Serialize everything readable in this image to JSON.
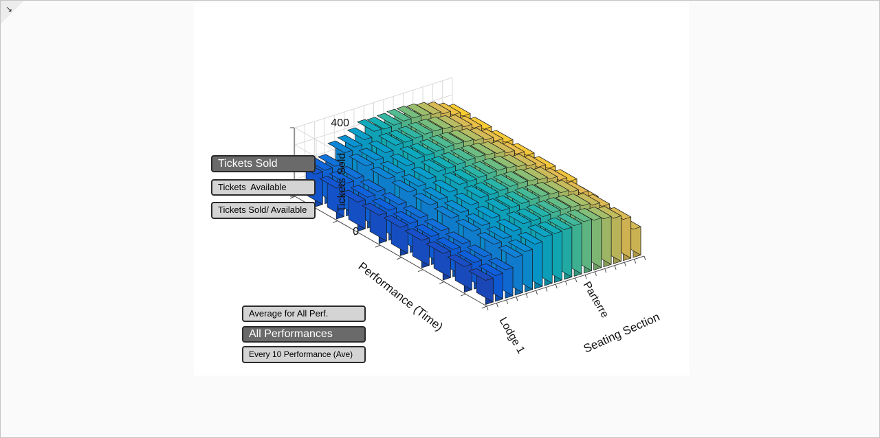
{
  "window": {
    "corner_icon": "resize-arrow-icon"
  },
  "buttons": {
    "tickets_sold": "Tickets Sold",
    "tickets_available": "Tickets  Available",
    "tickets_sold_available": "Tickets Sold/ Available",
    "average_all_perf": "Average for All Perf.",
    "all_performances": "All Performances",
    "every_10_performance": "Every 10 Performance (Ave)"
  },
  "chart_data": {
    "type": "bar3d",
    "zlabel": "Tickets Sold",
    "xlabel": "Performance (Time)",
    "ylabel": "Seating Section",
    "zlim": [
      0,
      400
    ],
    "zticks": [
      "0",
      "400"
    ],
    "section_ticks": [
      {
        "label": "Lodge 1",
        "index": 0
      },
      {
        "label": "Parterre",
        "index": 9
      }
    ],
    "colormap": "parula",
    "grid": true,
    "rows": [
      [
        190,
        195,
        200,
        260,
        275,
        300,
        330,
        325,
        330,
        335,
        335,
        330,
        320,
        305,
        280,
        255
      ],
      [
        180,
        190,
        200,
        255,
        270,
        295,
        320,
        320,
        325,
        330,
        330,
        325,
        315,
        300,
        275,
        250
      ],
      [
        170,
        180,
        195,
        250,
        265,
        290,
        315,
        315,
        320,
        325,
        325,
        320,
        310,
        295,
        270,
        245
      ],
      [
        165,
        175,
        190,
        245,
        260,
        285,
        310,
        310,
        315,
        320,
        320,
        315,
        305,
        290,
        265,
        240
      ],
      [
        165,
        170,
        185,
        240,
        255,
        280,
        305,
        305,
        310,
        315,
        315,
        310,
        300,
        285,
        260,
        235
      ],
      [
        160,
        165,
        180,
        235,
        250,
        275,
        300,
        300,
        305,
        310,
        310,
        305,
        295,
        280,
        255,
        230
      ],
      [
        155,
        160,
        175,
        230,
        245,
        270,
        295,
        295,
        300,
        305,
        305,
        300,
        290,
        275,
        250,
        200
      ],
      [
        150,
        155,
        170,
        225,
        240,
        265,
        290,
        290,
        295,
        300,
        300,
        295,
        285,
        270,
        245,
        175
      ],
      [
        140,
        150,
        165,
        220,
        235,
        260,
        285,
        285,
        290,
        295,
        300,
        290,
        280,
        265,
        240,
        165
      ]
    ]
  }
}
